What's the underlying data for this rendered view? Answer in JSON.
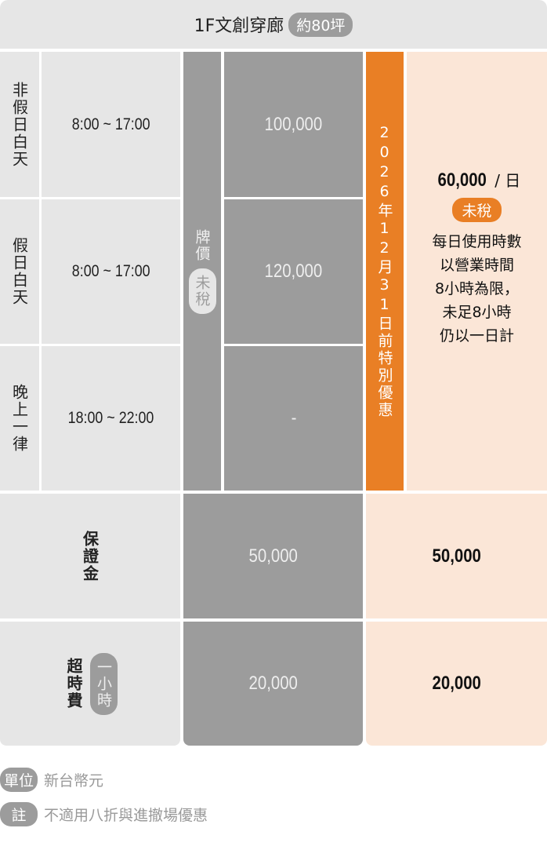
{
  "header": {
    "title": "1F文創穿廊",
    "area_badge": "約80坪"
  },
  "rows": [
    {
      "label": "非假日白天",
      "time": "8:00 ~ 17:00",
      "price": "100,000"
    },
    {
      "label": "假日白天",
      "time": "8:00 ~ 17:00",
      "price": "120,000"
    },
    {
      "label": "晚上一律",
      "time": "18:00 ~ 22:00",
      "price": "-"
    }
  ],
  "list_price": {
    "label": "牌價",
    "tax_badge": "未稅"
  },
  "promo": {
    "banner": "2026年12月31日前特別優惠",
    "price": "60,000",
    "unit": "/ 日",
    "tax_badge": "未稅",
    "note_lines": [
      "每日使用時數",
      "以營業時間",
      "8小時為限，",
      "未足8小時",
      "仍以一日計"
    ]
  },
  "deposit": {
    "label": "保證金",
    "list_price": "50,000",
    "promo_price": "50,000"
  },
  "overtime": {
    "label": "超時費",
    "unit_badge": "一小時",
    "list_price": "20,000",
    "promo_price": "20,000"
  },
  "footer": {
    "unit_badge": "單位",
    "unit_text": "新台幣元",
    "note_badge": "註",
    "note_text": "不適用八折與進撤場優惠"
  },
  "colors": {
    "light_gray": "#e6e6e6",
    "dark_gray": "#9c9c9c",
    "orange": "#e97f25",
    "peach": "#fbe6d7"
  }
}
